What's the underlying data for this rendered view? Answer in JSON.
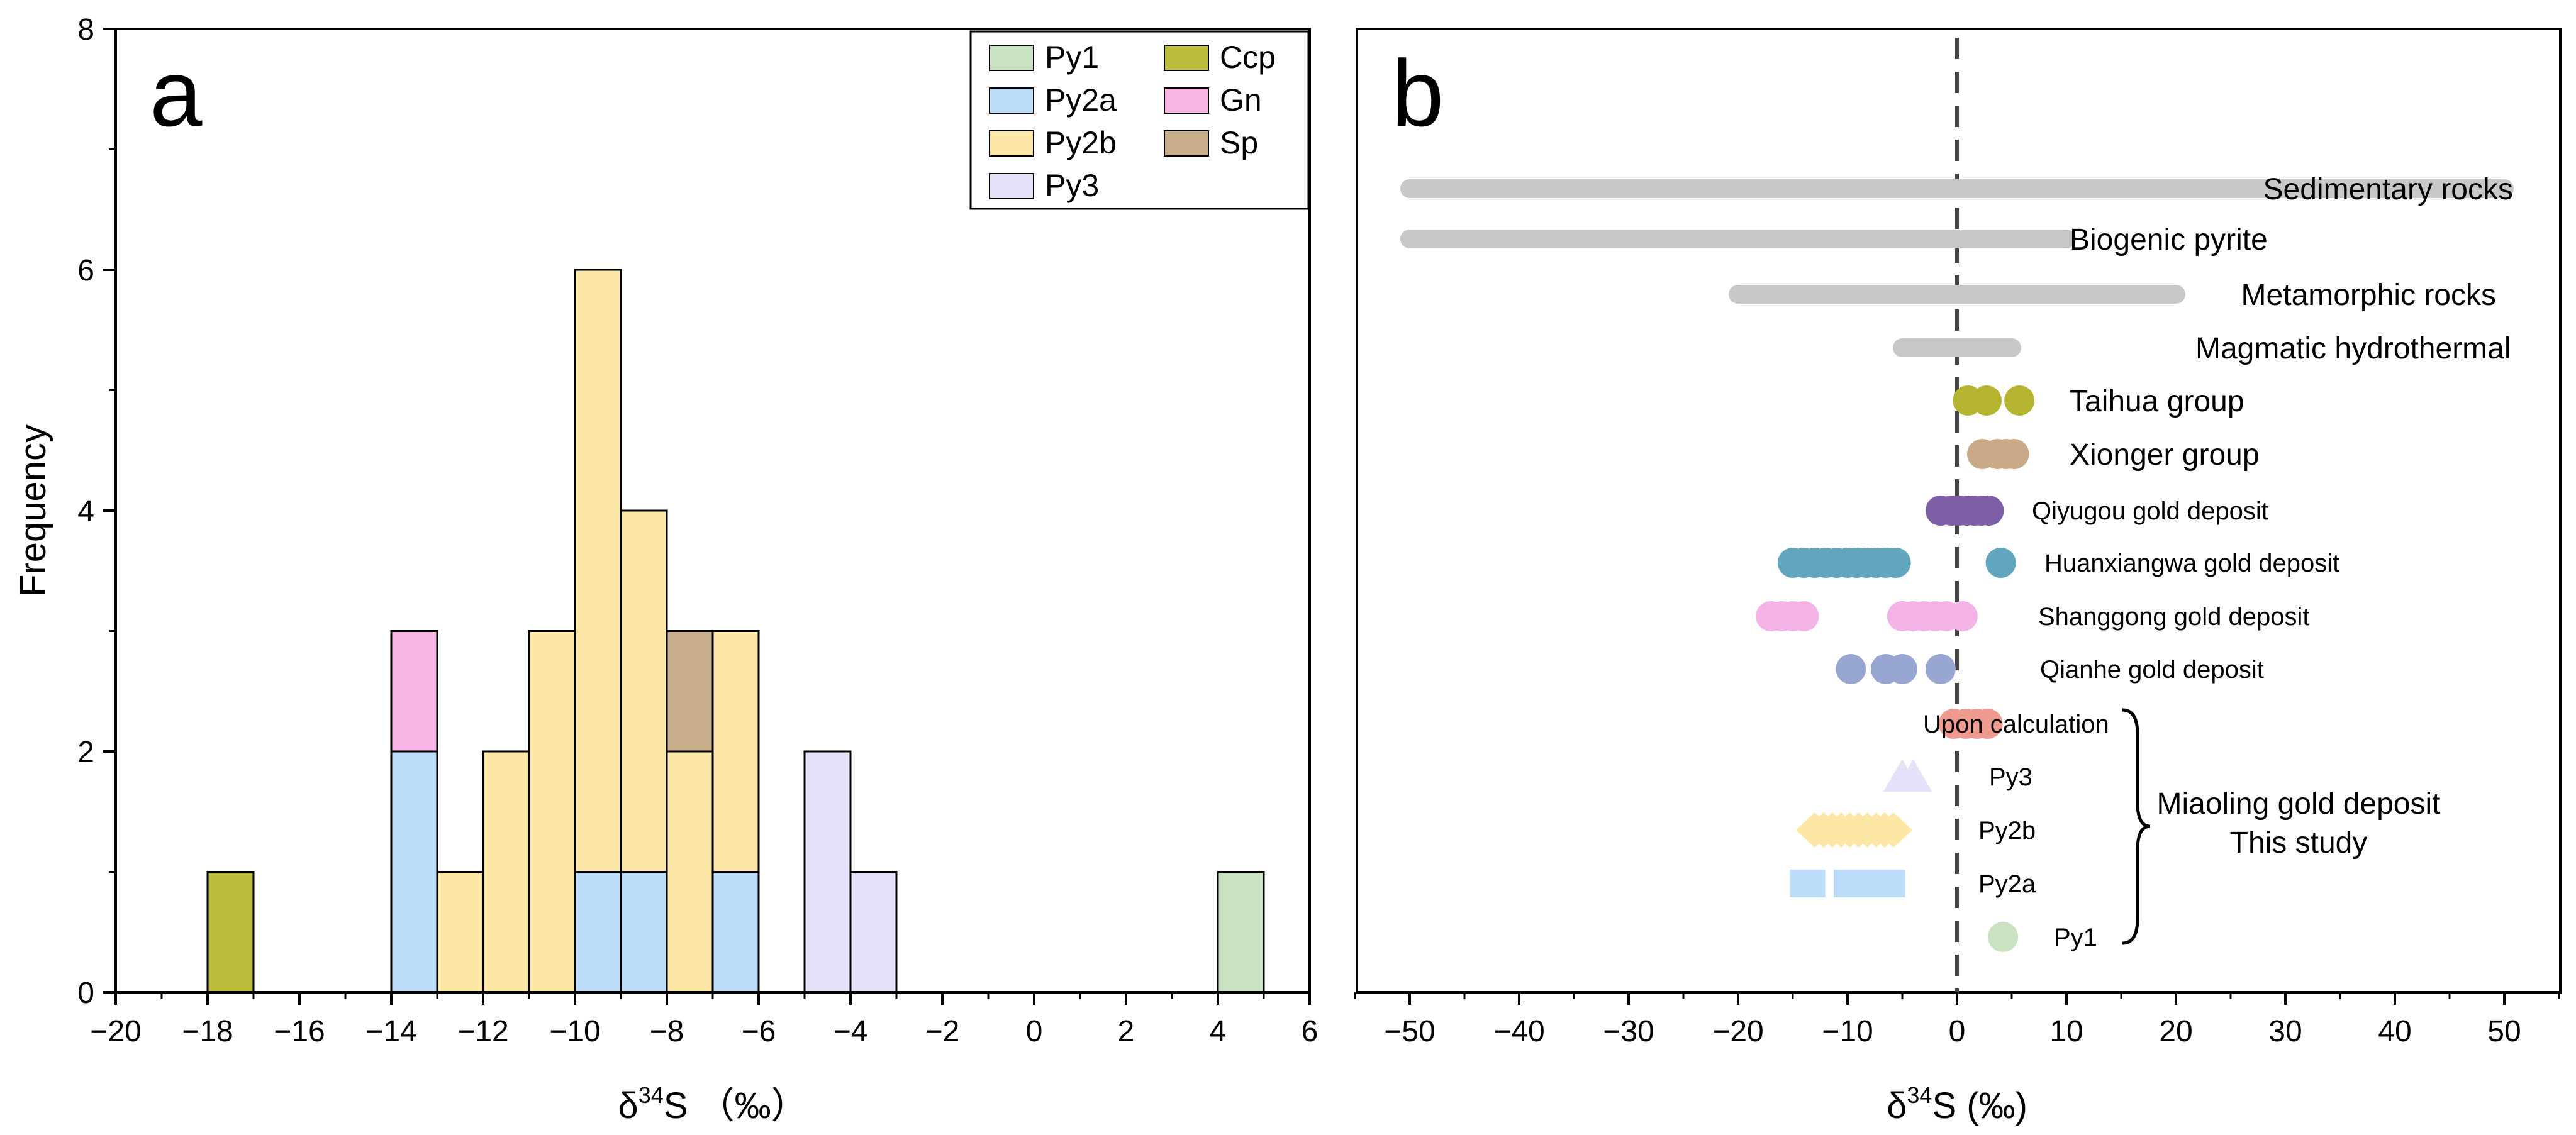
{
  "chart_data": [
    {
      "panel_label": "a",
      "type": "bar",
      "subtype": "stacked-histogram",
      "xlabel": "δ34S  (‰)",
      "xlabel_parts": {
        "delta": "δ",
        "sup": "34",
        "rest": "S （‰）"
      },
      "ylabel": "Frequency",
      "xlim": [
        -20,
        6
      ],
      "ylim": [
        0,
        8
      ],
      "x_ticks": [
        -20,
        -18,
        -16,
        -14,
        -12,
        -10,
        -8,
        -6,
        -4,
        -2,
        0,
        2,
        4,
        6
      ],
      "x_tick_labels": [
        "−20",
        "−18",
        "−16",
        "−14",
        "−12",
        "−10",
        "−8",
        "−6",
        "−4",
        "−2",
        "0",
        "2",
        "4",
        "6"
      ],
      "y_ticks": [
        0,
        2,
        4,
        6,
        8
      ],
      "y_tick_labels": [
        "0",
        "2",
        "4",
        "6",
        "8"
      ],
      "bin_width": 1,
      "legend": {
        "position": "top-right",
        "entries": [
          {
            "name": "Py1",
            "color": "#c9e3c2"
          },
          {
            "name": "Py2a",
            "color": "#bcdcf9"
          },
          {
            "name": "Py2b",
            "color": "#fde7a6"
          },
          {
            "name": "Py3",
            "color": "#e6e0f8"
          },
          {
            "name": "Ccp",
            "color": "#bdbd3d"
          },
          {
            "name": "Gn",
            "color": "#f7b6e6"
          },
          {
            "name": "Sp",
            "color": "#c9ae8c"
          }
        ]
      },
      "bars": [
        {
          "bin": [
            -18,
            -17
          ],
          "series": "Ccp",
          "bottom": 0,
          "count": 1
        },
        {
          "bin": [
            -14,
            -13
          ],
          "series": "Py2a",
          "bottom": 0,
          "count": 2
        },
        {
          "bin": [
            -14,
            -13
          ],
          "series": "Gn",
          "bottom": 2,
          "count": 1
        },
        {
          "bin": [
            -13,
            -12
          ],
          "series": "Py2b",
          "bottom": 0,
          "count": 1
        },
        {
          "bin": [
            -12,
            -11
          ],
          "series": "Py2b",
          "bottom": 0,
          "count": 2
        },
        {
          "bin": [
            -11,
            -10
          ],
          "series": "Py2b",
          "bottom": 0,
          "count": 3
        },
        {
          "bin": [
            -10,
            -9
          ],
          "series": "Py2a",
          "bottom": 0,
          "count": 1
        },
        {
          "bin": [
            -10,
            -9
          ],
          "series": "Py2b",
          "bottom": 1,
          "count": 5
        },
        {
          "bin": [
            -9,
            -8
          ],
          "series": "Py2a",
          "bottom": 0,
          "count": 1
        },
        {
          "bin": [
            -9,
            -8
          ],
          "series": "Py2b",
          "bottom": 1,
          "count": 3
        },
        {
          "bin": [
            -8,
            -7
          ],
          "series": "Py2b",
          "bottom": 0,
          "count": 2
        },
        {
          "bin": [
            -8,
            -7
          ],
          "series": "Sp",
          "bottom": 2,
          "count": 1
        },
        {
          "bin": [
            -7,
            -6
          ],
          "series": "Py2a",
          "bottom": 0,
          "count": 1
        },
        {
          "bin": [
            -7,
            -6
          ],
          "series": "Py2b",
          "bottom": 1,
          "count": 2
        },
        {
          "bin": [
            -5,
            -4
          ],
          "series": "Py3",
          "bottom": 0,
          "count": 2
        },
        {
          "bin": [
            -4,
            -3
          ],
          "series": "Py3",
          "bottom": 0,
          "count": 1
        },
        {
          "bin": [
            4,
            5
          ],
          "series": "Py1",
          "bottom": 0,
          "count": 1
        }
      ]
    },
    {
      "panel_label": "b",
      "type": "scatter",
      "subtype": "range-comparison",
      "xlabel": "δ34S (‰)",
      "xlabel_parts": {
        "delta": "δ",
        "sup": "34",
        "rest": "S (‰)"
      },
      "xlim": [
        -55,
        56
      ],
      "x_ticks": [
        -50,
        -40,
        -30,
        -20,
        -10,
        0,
        10,
        20,
        30,
        40,
        50
      ],
      "x_tick_labels": [
        "−50",
        "−40",
        "−30",
        "−20",
        "−10",
        "0",
        "10",
        "20",
        "30",
        "40",
        "50"
      ],
      "reference_line_x": 0,
      "rows": [
        {
          "label": "Sedimentary rocks",
          "kind": "range",
          "color": "#c8c8c8",
          "from": -50,
          "to": 50
        },
        {
          "label": "Biogenic pyrite",
          "kind": "range",
          "color": "#c8c8c8",
          "from": -50,
          "to": 10
        },
        {
          "label": "Metamorphic rocks",
          "kind": "range",
          "color": "#c8c8c8",
          "from": -20,
          "to": 20
        },
        {
          "label": "Magmatic hydrothermal",
          "kind": "range",
          "color": "#c8c8c8",
          "from": -5,
          "to": 5
        },
        {
          "label": "Taihua group",
          "kind": "points",
          "marker": "circle",
          "color": "#b5b531",
          "values": [
            1,
            2.7,
            5.7
          ]
        },
        {
          "label": "Xionger group",
          "kind": "points",
          "marker": "circle",
          "color": "#c9a987",
          "values": [
            2.3,
            3.7,
            4.5,
            5.2
          ]
        },
        {
          "label": "Qiyugou gold deposit",
          "kind": "points",
          "marker": "circle",
          "color": "#7c5fa4",
          "values": [
            -1.5,
            -0.5,
            0.2,
            0.9,
            1.6,
            2.2,
            2.9
          ]
        },
        {
          "label": "Huanxiangwa gold deposit",
          "kind": "points",
          "marker": "circle",
          "color": "#62a6bd",
          "values": [
            -15,
            -14,
            -13,
            -12,
            -11,
            -10,
            -9.2,
            -8.3,
            -7.4,
            -6.5,
            -5.6,
            4
          ]
        },
        {
          "label": "Shanggong gold deposit",
          "kind": "points",
          "marker": "circle",
          "color": "#f4b3e6",
          "values": [
            -17,
            -16,
            -15,
            -14,
            -5,
            -4,
            -3,
            -2,
            -1,
            0.5
          ]
        },
        {
          "label": "Qianhe gold deposit",
          "kind": "points",
          "marker": "circle",
          "color": "#98a7d2",
          "values": [
            -9.7,
            -6.5,
            -5,
            -1.5
          ]
        },
        {
          "label": "Upon calculation",
          "kind": "points",
          "marker": "circle",
          "color": "#ef9a8e",
          "values": [
            -0.3,
            0.8,
            1.8,
            2.8
          ],
          "label_side": "left"
        },
        {
          "label": "Py3",
          "kind": "points",
          "marker": "triangle",
          "color": "#e6e0f8",
          "values": [
            -5,
            -4
          ]
        },
        {
          "label": "Py2b",
          "kind": "points",
          "marker": "diamond",
          "color": "#fde7a6",
          "values": [
            -13,
            -12.2,
            -11.4,
            -10.6,
            -9.8,
            -9,
            -8.2,
            -7.4,
            -6.6,
            -5.8
          ]
        },
        {
          "label": "Py2a",
          "kind": "points",
          "marker": "square",
          "color": "#bcdcf9",
          "values": [
            -14,
            -13.3,
            -10,
            -9.2,
            -8.4,
            -7.6,
            -6.8,
            -6
          ]
        },
        {
          "label": "Py1",
          "kind": "points",
          "marker": "circle",
          "color": "#c9e3c2",
          "values": [
            4.2
          ]
        }
      ],
      "group_annotation": {
        "line1": "Miaoling gold deposit",
        "line2": "This study",
        "covers": [
          "Upon calculation",
          "Py3",
          "Py2b",
          "Py2a",
          "Py1"
        ]
      }
    }
  ]
}
